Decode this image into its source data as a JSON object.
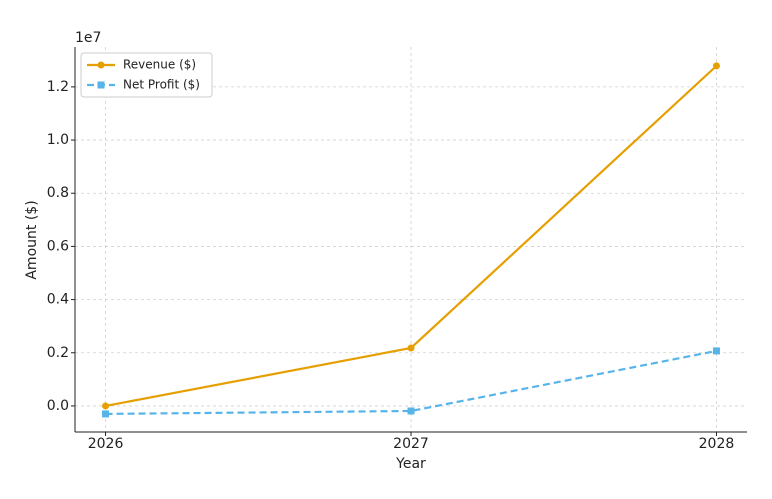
{
  "chart_data": {
    "type": "line",
    "x_label": "Year",
    "y_label": "Amount ($)",
    "y_offset_label": "1e7",
    "x": [
      2026,
      2027,
      2028
    ],
    "series": [
      {
        "name": "Revenue ($)",
        "color": "#e69f00",
        "marker": "circle",
        "dashed": false,
        "values": [
          0,
          2180000,
          12790000
        ]
      },
      {
        "name": "Net Profit ($)",
        "color": "#56b4e9",
        "marker": "square",
        "dashed": true,
        "values": [
          -300000,
          -190000,
          2070000
        ]
      }
    ],
    "xlim": [
      2025.9,
      2028.1
    ],
    "xticks": [
      2026,
      2027,
      2028
    ],
    "ylim": [
      -980000,
      13500000
    ],
    "yticks": [
      {
        "value": 0,
        "label": "0.0"
      },
      {
        "value": 2000000,
        "label": "0.2"
      },
      {
        "value": 4000000,
        "label": "0.4"
      },
      {
        "value": 6000000,
        "label": "0.6"
      },
      {
        "value": 8000000,
        "label": "0.8"
      },
      {
        "value": 10000000,
        "label": "1.0"
      },
      {
        "value": 12000000,
        "label": "1.2"
      }
    ],
    "grid": true,
    "legend": "upper-left"
  }
}
